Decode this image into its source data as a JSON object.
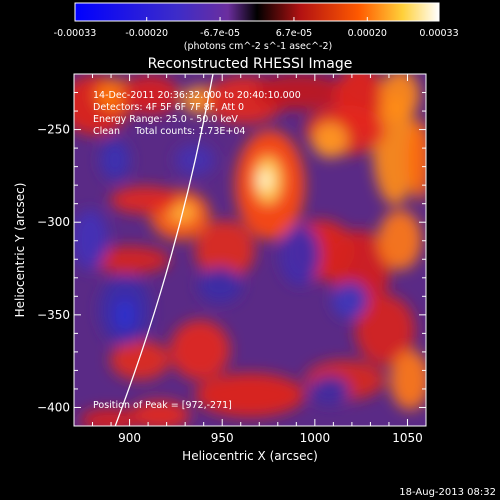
{
  "chart_data": {
    "type": "heatmap",
    "title": "Reconstructed RHESSI Image",
    "xlabel": "Heliocentric X (arcsec)",
    "ylabel": "Heliocentric Y (arcsec)",
    "xlim": [
      870,
      1060
    ],
    "ylim": [
      -410,
      -220
    ],
    "x_ticks": [
      900,
      950,
      1000,
      1050
    ],
    "y_ticks": [
      -250,
      -300,
      -350,
      -400
    ],
    "colorbar": {
      "range": [
        -0.00033,
        0.00033
      ],
      "tick_values": [
        -0.00033,
        -0.0002,
        -6.7e-05,
        6.7e-05,
        0.0002,
        0.00033
      ],
      "tick_labels": [
        "-0.00033",
        "-0.00020",
        "-6.7e-05",
        "6.7e-05",
        "0.00020",
        "0.00033"
      ],
      "unit_label": "(photons cm^-2 s^-1 asec^-2)"
    },
    "annotations": {
      "time_range": "14-Dec-2011 20:36:32.000 to 20:40:10.000",
      "detectors": "Detectors: 4F 5F 6F 7F 8F, Att 0",
      "energy_range": "Energy Range: 25.0 - 50.0 keV",
      "method": "Clean     Total counts: 1.73E+04",
      "peak": "Position of Peak = [972,-271]"
    },
    "peak": [
      972,
      -271
    ],
    "footer_date": "18-Aug-2013 08:32",
    "colors": {
      "background": "#000000",
      "limb_line": "#ffffff"
    }
  }
}
